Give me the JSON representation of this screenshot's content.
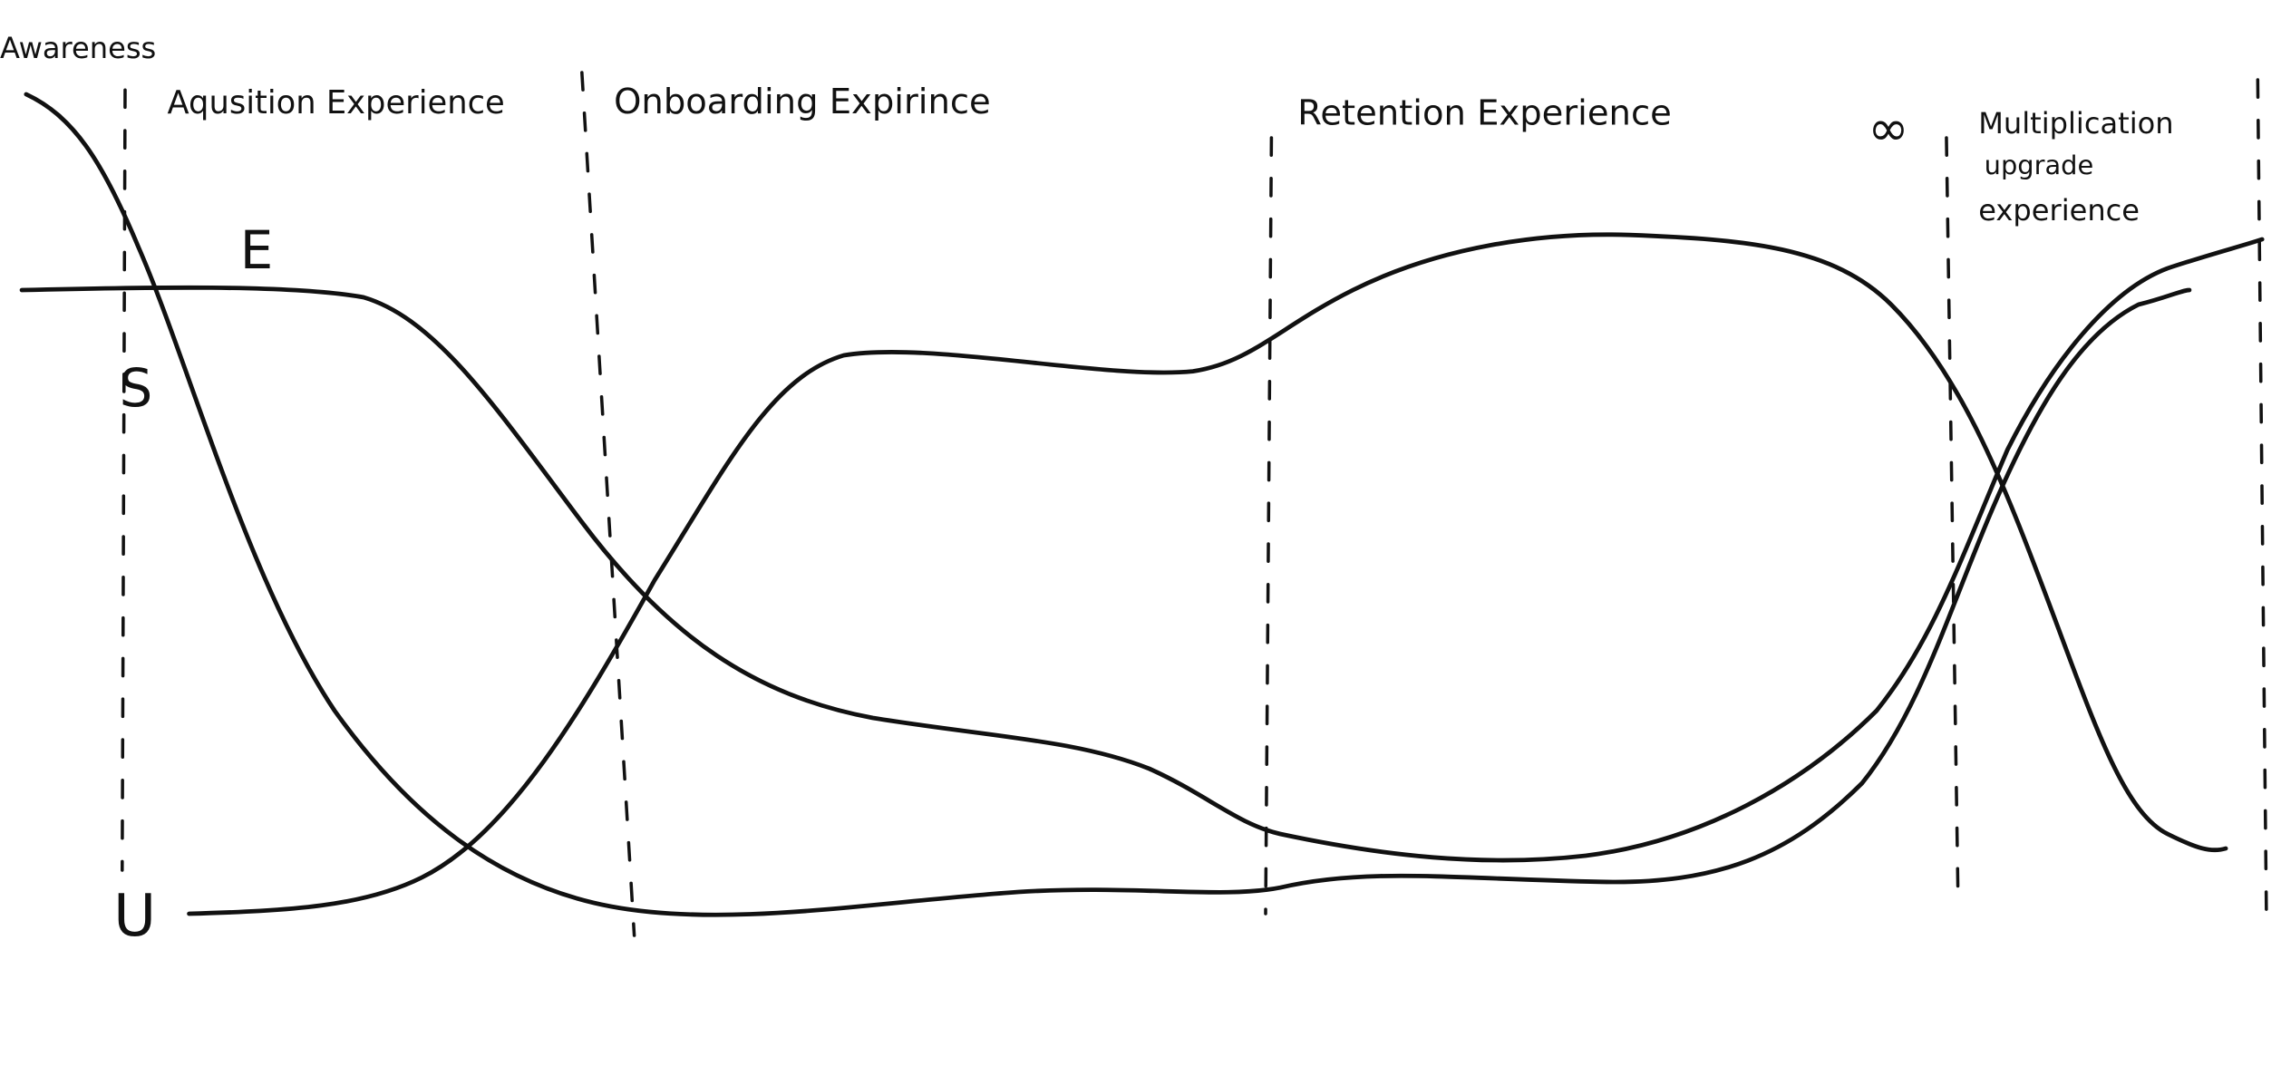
{
  "awareness": "Awareness",
  "stages": [
    "Aqusition Experience",
    "Onboarding Expirince",
    "Retention Experience"
  ],
  "infinity": "∞",
  "multiplication": [
    "Multiplication",
    "upgrade",
    "experience"
  ],
  "curve_labels": [
    "E",
    "S",
    "U"
  ]
}
